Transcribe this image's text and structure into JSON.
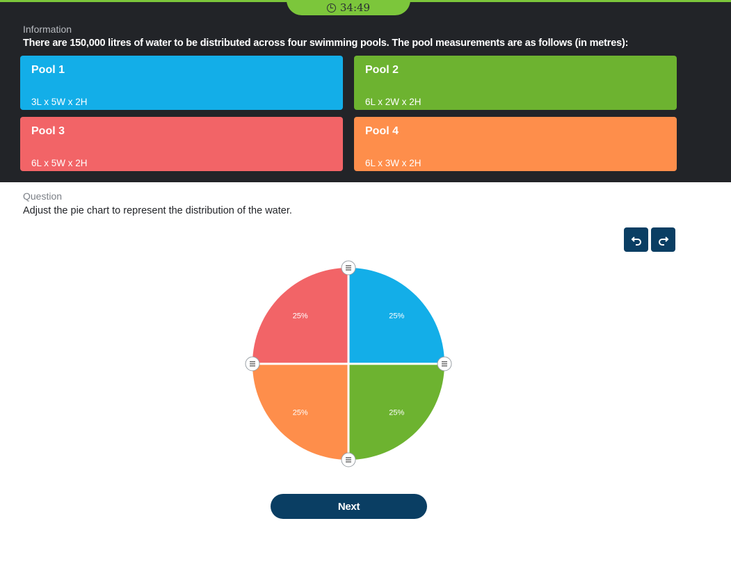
{
  "timer": {
    "value": "34:49"
  },
  "information": {
    "label": "Information",
    "text": "There are 150,000 litres of water to be distributed across four swimming pools. The pool measurements are as follows (in metres):"
  },
  "pools": [
    {
      "name": "Pool 1",
      "dimensions": "3L x 5W x 2H",
      "color": "#13aee8"
    },
    {
      "name": "Pool 2",
      "dimensions": "6L x 2W x 2H",
      "color": "#6db330"
    },
    {
      "name": "Pool 3",
      "dimensions": "6L x 5W x 2H",
      "color": "#f26467"
    },
    {
      "name": "Pool 4",
      "dimensions": "6L x 3W x 2H",
      "color": "#fe8e4b"
    }
  ],
  "question": {
    "label": "Question",
    "text": "Adjust the pie chart to represent the distribution of the water."
  },
  "toolbar": {
    "undo_icon": "undo-icon",
    "redo_icon": "redo-icon"
  },
  "chart_data": {
    "type": "pie",
    "title": "",
    "labels": [
      "25%",
      "25%",
      "25%",
      "25%"
    ],
    "values": [
      25,
      25,
      25,
      25
    ],
    "colors": [
      "#13aee8",
      "#6db330",
      "#fe8e4b",
      "#f26467"
    ],
    "start_angle_deg": 0,
    "direction": "clockwise",
    "order": "Pool 2, Pool 4, Pool 3, Pool 1"
  },
  "next_button": {
    "label": "Next"
  }
}
